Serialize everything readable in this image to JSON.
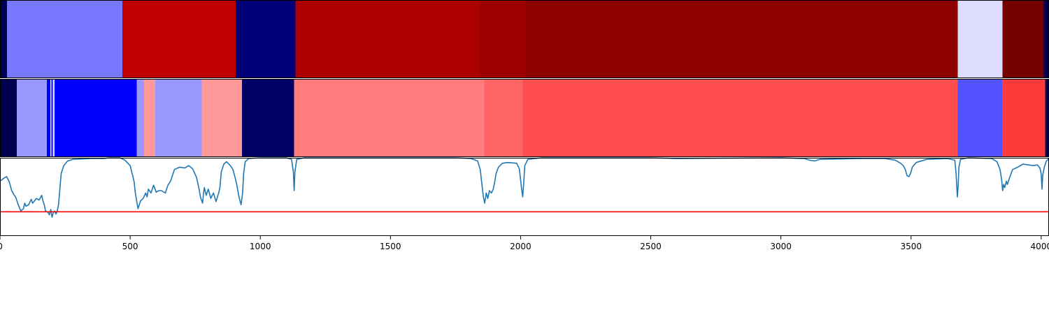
{
  "chart_data": {
    "type": "heatmap",
    "title": "",
    "xlabel": "",
    "ylabel": "",
    "xlim": [
      0,
      4030
    ],
    "x_ticks": [
      0,
      500,
      1000,
      1500,
      2000,
      2500,
      3000,
      3500,
      4000
    ],
    "grid": false,
    "legend": "none",
    "tracks": [
      {
        "kind": "segment-heatmap",
        "segments": [
          {
            "start": 0,
            "end": 27,
            "color": "#000050"
          },
          {
            "start": 27,
            "end": 470,
            "color": "#7878ff"
          },
          {
            "start": 470,
            "end": 905,
            "color": "#c00000"
          },
          {
            "start": 905,
            "end": 1135,
            "color": "#000078"
          },
          {
            "start": 1135,
            "end": 1840,
            "color": "#ad0000"
          },
          {
            "start": 1840,
            "end": 2020,
            "color": "#9c0000"
          },
          {
            "start": 2020,
            "end": 3680,
            "color": "#8d0000"
          },
          {
            "start": 3680,
            "end": 3852,
            "color": "#dcdcff"
          },
          {
            "start": 3852,
            "end": 4010,
            "color": "#740000"
          },
          {
            "start": 4010,
            "end": 4030,
            "color": "#000050"
          }
        ]
      },
      {
        "kind": "segment-heatmap",
        "segments": [
          {
            "start": 0,
            "end": 65,
            "color": "#000050"
          },
          {
            "start": 65,
            "end": 180,
            "color": "#9898ff"
          },
          {
            "start": 180,
            "end": 193,
            "color": "#0000ff"
          },
          {
            "start": 193,
            "end": 198,
            "color": "#dcdcff"
          },
          {
            "start": 198,
            "end": 203,
            "color": "#0000ff"
          },
          {
            "start": 203,
            "end": 209,
            "color": "#dcdcff"
          },
          {
            "start": 209,
            "end": 525,
            "color": "#0000ff"
          },
          {
            "start": 525,
            "end": 553,
            "color": "#9898ff"
          },
          {
            "start": 553,
            "end": 597,
            "color": "#ff9898"
          },
          {
            "start": 597,
            "end": 775,
            "color": "#9898ff"
          },
          {
            "start": 775,
            "end": 930,
            "color": "#ff9898"
          },
          {
            "start": 930,
            "end": 1130,
            "color": "#000066"
          },
          {
            "start": 1130,
            "end": 1860,
            "color": "#ff7c7c"
          },
          {
            "start": 1860,
            "end": 2008,
            "color": "#ff6464"
          },
          {
            "start": 2008,
            "end": 3680,
            "color": "#ff4e4e"
          },
          {
            "start": 3680,
            "end": 3850,
            "color": "#5252ff"
          },
          {
            "start": 3850,
            "end": 4015,
            "color": "#ff3a3a"
          },
          {
            "start": 4015,
            "end": 4030,
            "color": "#000050"
          }
        ]
      },
      {
        "kind": "line",
        "ylim": [
          0,
          1
        ],
        "line_color": "#1f77b4",
        "threshold": 0.31,
        "threshold_color": "#ff0000",
        "points": [
          [
            0,
            0.7
          ],
          [
            15,
            0.74
          ],
          [
            25,
            0.76
          ],
          [
            35,
            0.7
          ],
          [
            45,
            0.58
          ],
          [
            55,
            0.52
          ],
          [
            60,
            0.5
          ],
          [
            65,
            0.45
          ],
          [
            70,
            0.4
          ],
          [
            75,
            0.36
          ],
          [
            80,
            0.32
          ],
          [
            90,
            0.35
          ],
          [
            95,
            0.42
          ],
          [
            100,
            0.38
          ],
          [
            110,
            0.4
          ],
          [
            120,
            0.47
          ],
          [
            125,
            0.42
          ],
          [
            130,
            0.44
          ],
          [
            140,
            0.48
          ],
          [
            150,
            0.46
          ],
          [
            160,
            0.52
          ],
          [
            165,
            0.45
          ],
          [
            170,
            0.4
          ],
          [
            175,
            0.32
          ],
          [
            185,
            0.3
          ],
          [
            190,
            0.27
          ],
          [
            195,
            0.34
          ],
          [
            200,
            0.24
          ],
          [
            205,
            0.3
          ],
          [
            210,
            0.32
          ],
          [
            215,
            0.28
          ],
          [
            220,
            0.32
          ],
          [
            225,
            0.4
          ],
          [
            235,
            0.8
          ],
          [
            245,
            0.9
          ],
          [
            260,
            0.96
          ],
          [
            280,
            0.98
          ],
          [
            350,
            0.99
          ],
          [
            400,
            0.99
          ],
          [
            420,
            1.0
          ],
          [
            460,
            1.0
          ],
          [
            480,
            0.97
          ],
          [
            500,
            0.9
          ],
          [
            515,
            0.7
          ],
          [
            520,
            0.55
          ],
          [
            525,
            0.45
          ],
          [
            530,
            0.35
          ],
          [
            540,
            0.45
          ],
          [
            550,
            0.48
          ],
          [
            560,
            0.55
          ],
          [
            565,
            0.5
          ],
          [
            570,
            0.6
          ],
          [
            580,
            0.55
          ],
          [
            590,
            0.65
          ],
          [
            600,
            0.56
          ],
          [
            610,
            0.58
          ],
          [
            620,
            0.58
          ],
          [
            635,
            0.55
          ],
          [
            645,
            0.65
          ],
          [
            655,
            0.7
          ],
          [
            670,
            0.85
          ],
          [
            690,
            0.88
          ],
          [
            710,
            0.87
          ],
          [
            725,
            0.9
          ],
          [
            740,
            0.86
          ],
          [
            755,
            0.75
          ],
          [
            765,
            0.6
          ],
          [
            770,
            0.5
          ],
          [
            778,
            0.42
          ],
          [
            782,
            0.55
          ],
          [
            785,
            0.62
          ],
          [
            792,
            0.52
          ],
          [
            800,
            0.6
          ],
          [
            810,
            0.48
          ],
          [
            820,
            0.55
          ],
          [
            830,
            0.44
          ],
          [
            840,
            0.55
          ],
          [
            845,
            0.62
          ],
          [
            850,
            0.82
          ],
          [
            860,
            0.92
          ],
          [
            870,
            0.95
          ],
          [
            885,
            0.9
          ],
          [
            895,
            0.85
          ],
          [
            903,
            0.75
          ],
          [
            910,
            0.65
          ],
          [
            918,
            0.5
          ],
          [
            926,
            0.4
          ],
          [
            932,
            0.55
          ],
          [
            936,
            0.8
          ],
          [
            942,
            0.95
          ],
          [
            955,
            0.99
          ],
          [
            1000,
            1.0
          ],
          [
            1100,
            1.0
          ],
          [
            1120,
            0.98
          ],
          [
            1127,
            0.82
          ],
          [
            1130,
            0.58
          ],
          [
            1133,
            0.82
          ],
          [
            1140,
            0.98
          ],
          [
            1170,
            1.0
          ],
          [
            1500,
            1.0
          ],
          [
            1750,
            1.0
          ],
          [
            1810,
            0.99
          ],
          [
            1835,
            0.96
          ],
          [
            1845,
            0.85
          ],
          [
            1850,
            0.7
          ],
          [
            1857,
            0.5
          ],
          [
            1862,
            0.42
          ],
          [
            1868,
            0.55
          ],
          [
            1874,
            0.48
          ],
          [
            1880,
            0.58
          ],
          [
            1888,
            0.55
          ],
          [
            1895,
            0.6
          ],
          [
            1900,
            0.68
          ],
          [
            1906,
            0.8
          ],
          [
            1915,
            0.88
          ],
          [
            1930,
            0.93
          ],
          [
            1950,
            0.94
          ],
          [
            1985,
            0.93
          ],
          [
            1995,
            0.86
          ],
          [
            2000,
            0.72
          ],
          [
            2004,
            0.6
          ],
          [
            2008,
            0.5
          ],
          [
            2012,
            0.68
          ],
          [
            2016,
            0.9
          ],
          [
            2028,
            0.98
          ],
          [
            2080,
            1.0
          ],
          [
            2500,
            1.0
          ],
          [
            2600,
            0.99
          ],
          [
            3000,
            1.0
          ],
          [
            3090,
            0.99
          ],
          [
            3110,
            0.97
          ],
          [
            3130,
            0.96
          ],
          [
            3150,
            0.98
          ],
          [
            3300,
            0.99
          ],
          [
            3400,
            0.99
          ],
          [
            3440,
            0.97
          ],
          [
            3460,
            0.93
          ],
          [
            3470,
            0.9
          ],
          [
            3478,
            0.85
          ],
          [
            3485,
            0.77
          ],
          [
            3492,
            0.76
          ],
          [
            3498,
            0.8
          ],
          [
            3505,
            0.88
          ],
          [
            3520,
            0.94
          ],
          [
            3560,
            0.98
          ],
          [
            3640,
            0.99
          ],
          [
            3668,
            0.97
          ],
          [
            3673,
            0.8
          ],
          [
            3676,
            0.62
          ],
          [
            3678,
            0.5
          ],
          [
            3681,
            0.64
          ],
          [
            3684,
            0.88
          ],
          [
            3690,
            0.98
          ],
          [
            3720,
            1.0
          ],
          [
            3810,
            0.99
          ],
          [
            3830,
            0.95
          ],
          [
            3842,
            0.85
          ],
          [
            3848,
            0.72
          ],
          [
            3852,
            0.58
          ],
          [
            3856,
            0.66
          ],
          [
            3860,
            0.62
          ],
          [
            3866,
            0.7
          ],
          [
            3870,
            0.66
          ],
          [
            3878,
            0.74
          ],
          [
            3890,
            0.85
          ],
          [
            3910,
            0.88
          ],
          [
            3930,
            0.92
          ],
          [
            3950,
            0.91
          ],
          [
            3970,
            0.9
          ],
          [
            3985,
            0.91
          ],
          [
            3995,
            0.87
          ],
          [
            4000,
            0.8
          ],
          [
            4003,
            0.6
          ],
          [
            4006,
            0.78
          ],
          [
            4012,
            0.88
          ],
          [
            4020,
            0.96
          ],
          [
            4030,
            0.99
          ]
        ]
      }
    ]
  }
}
